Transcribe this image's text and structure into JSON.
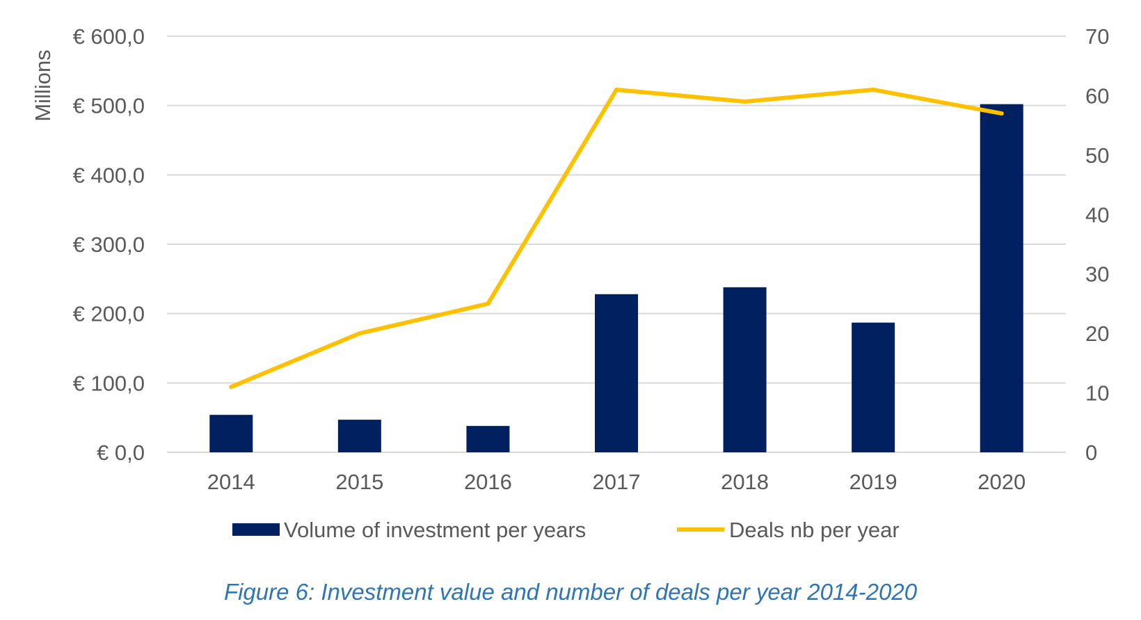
{
  "chart_data": {
    "type": "bar",
    "categories": [
      "2014",
      "2015",
      "2016",
      "2017",
      "2018",
      "2019",
      "2020"
    ],
    "series": [
      {
        "name": "Volume of investment per years",
        "type": "bar",
        "axis": "left",
        "values": [
          54,
          47,
          38,
          228,
          238,
          187,
          502
        ]
      },
      {
        "name": "Deals nb per year",
        "type": "line",
        "axis": "right",
        "values": [
          11,
          20,
          25,
          61,
          59,
          61,
          57
        ]
      }
    ],
    "ylabel": "Millions",
    "ylim": [
      0,
      600
    ],
    "y_ticks": [
      "€ 0,0",
      "€ 100,0",
      "€ 200,0",
      "€ 300,0",
      "€ 400,0",
      "€ 500,0",
      "€ 600,0"
    ],
    "y2lim": [
      0,
      70
    ],
    "y2_ticks": [
      "0",
      "10",
      "20",
      "30",
      "40",
      "50",
      "60",
      "70"
    ],
    "grid": true,
    "legend": "bottom",
    "colors": {
      "bar": "#002060",
      "line": "#ffc000",
      "text": "#595959",
      "caption": "#2e75b6"
    }
  },
  "caption": "Figure 6: Investment value and number of deals per year 2014-2020"
}
